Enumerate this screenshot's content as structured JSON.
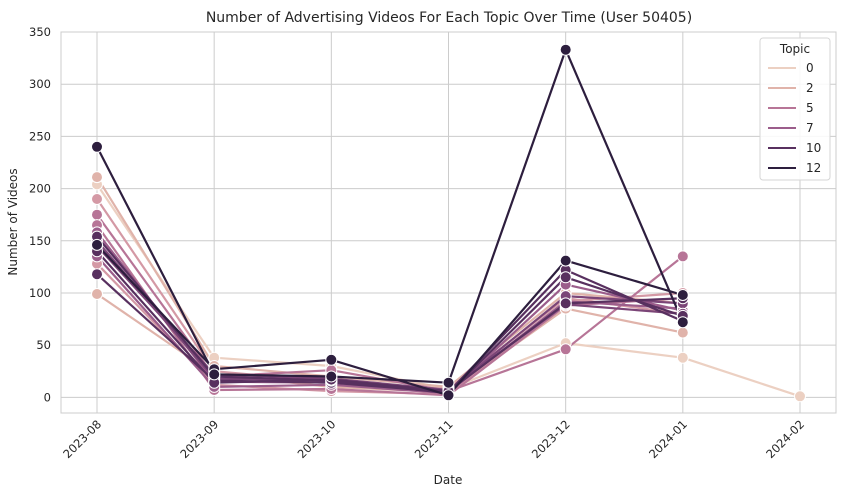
{
  "chart_data": {
    "type": "line",
    "title": "Number of Advertising Videos For Each Topic Over Time (User 50405)",
    "xlabel": "Date",
    "ylabel": "Number of Videos",
    "x": [
      "2023-08",
      "2023-09",
      "2023-10",
      "2023-11",
      "2023-12",
      "2024-01",
      "2024-02"
    ],
    "ylim": [
      -15,
      350
    ],
    "yticks": [
      0,
      50,
      100,
      150,
      200,
      250,
      300,
      350
    ],
    "grid": true,
    "legend": {
      "title": "Topic",
      "placement": "top-right",
      "entries": [
        "0",
        "2",
        "5",
        "7",
        "10",
        "12"
      ]
    },
    "palette": [
      "#ecd0c2",
      "#e0b3aa",
      "#d499a5",
      "#b77597",
      "#9b5d8b",
      "#7b4577",
      "#58305f",
      "#2d1e3e"
    ],
    "series": [
      {
        "values": [
          204,
          38,
          30,
          8,
          52,
          38,
          1
        ],
        "colorIndex": 0
      },
      {
        "values": [
          99,
          22,
          10,
          5,
          85,
          62,
          null
        ],
        "colorIndex": 1
      },
      {
        "values": [
          211,
          30,
          20,
          10,
          100,
          90,
          null
        ],
        "colorIndex": 1
      },
      {
        "values": [
          190,
          25,
          15,
          8,
          95,
          80,
          null
        ],
        "colorIndex": 2
      },
      {
        "values": [
          128,
          12,
          6,
          3,
          92,
          100,
          null
        ],
        "colorIndex": 2
      },
      {
        "values": [
          175,
          20,
          26,
          6,
          46,
          135,
          null
        ],
        "colorIndex": 3
      },
      {
        "values": [
          165,
          7,
          8,
          2,
          88,
          95,
          null
        ],
        "colorIndex": 3
      },
      {
        "values": [
          158,
          15,
          14,
          5,
          92,
          85,
          null
        ],
        "colorIndex": 4
      },
      {
        "values": [
          135,
          10,
          12,
          4,
          108,
          83,
          null
        ],
        "colorIndex": 4
      },
      {
        "values": [
          150,
          18,
          16,
          6,
          97,
          90,
          null
        ],
        "colorIndex": 5
      },
      {
        "values": [
          145,
          22,
          18,
          7,
          89,
          80,
          null
        ],
        "colorIndex": 5
      },
      {
        "values": [
          118,
          16,
          14,
          5,
          122,
          73,
          null
        ],
        "colorIndex": 6
      },
      {
        "values": [
          154,
          20,
          16,
          4,
          115,
          78,
          null
        ],
        "colorIndex": 6
      },
      {
        "values": [
          140,
          14,
          17,
          6,
          90,
          95,
          null
        ],
        "colorIndex": 6
      },
      {
        "values": [
          146,
          27,
          36,
          2,
          131,
          98,
          null
        ],
        "colorIndex": 7
      },
      {
        "values": [
          240,
          22,
          20,
          14,
          333,
          72,
          null
        ],
        "colorIndex": 7
      }
    ]
  }
}
